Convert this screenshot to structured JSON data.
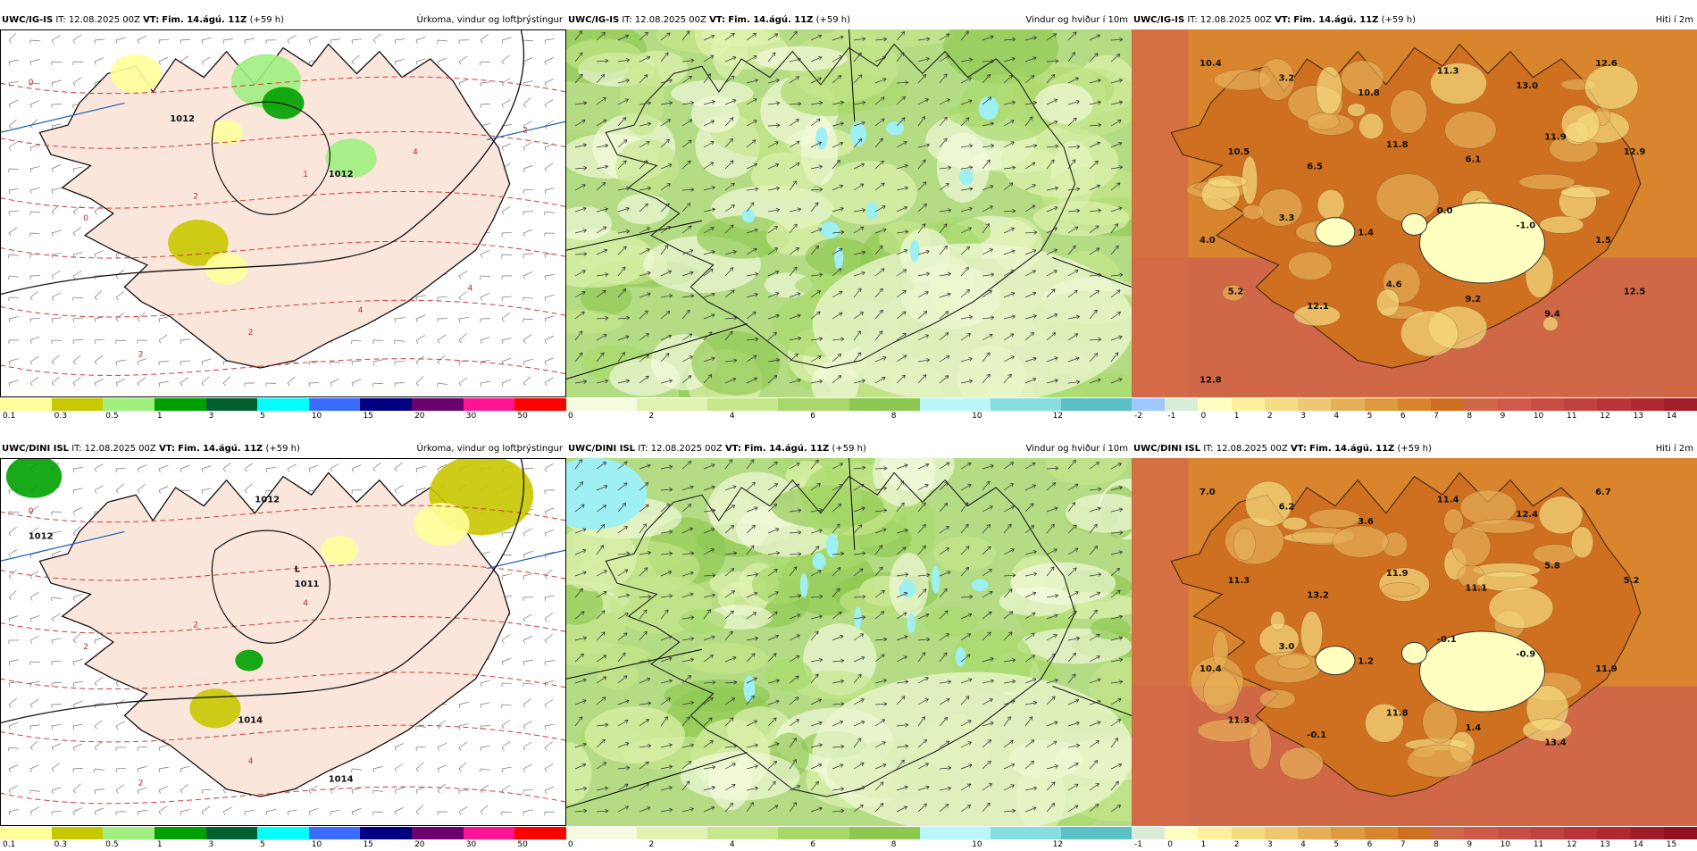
{
  "rows": [
    {
      "model": "UWC/IG-IS",
      "it_label": "IT:",
      "it_value": "12.08.2025 00Z",
      "vt_label": "VT:",
      "vt_value": "Fim. 14.ágú. 11Z",
      "lead": "(+59 h)",
      "panels": {
        "precip": {
          "title": "Úrkoma, vindur og loftþrýstingur",
          "ticks": [
            "0.1",
            "0.3",
            "0.5",
            "1",
            "3",
            "5",
            "10",
            "15",
            "20",
            "30",
            "50"
          ],
          "isobar_labels": [
            "1012",
            "1012"
          ],
          "contour_labels": [
            "0",
            "0",
            "2",
            "2",
            "2",
            "1",
            "4",
            "4",
            "4",
            "2"
          ]
        },
        "wind": {
          "title": "Vindur og hviður í 10m",
          "ticks": [
            "0",
            "2",
            "4",
            "6",
            "8",
            "10",
            "12"
          ]
        },
        "temp": {
          "title": "Hiti í 2m",
          "ticks": [
            "-2",
            "-1",
            "0",
            "1",
            "2",
            "3",
            "4",
            "5",
            "6",
            "7",
            "8",
            "9",
            "10",
            "11",
            "12",
            "13",
            "14"
          ],
          "labels": [
            "10.4",
            "3.2",
            "10.8",
            "11.3",
            "13.0",
            "12.6",
            "10.5",
            "6.5",
            "11.8",
            "6.1",
            "11.9",
            "12.9",
            "4.0",
            "3.3",
            "1.4",
            "0.0",
            "-1.0",
            "1.5",
            "5.2",
            "12.1",
            "4.6",
            "9.2",
            "9.4",
            "12.5",
            "12.8"
          ]
        }
      }
    },
    {
      "model": "UWC/DINI ISL",
      "it_label": "IT:",
      "it_value": "12.08.2025 00Z",
      "vt_label": "VT:",
      "vt_value": "Fim. 14.ágú. 11Z",
      "lead": "(+59 h)",
      "panels": {
        "precip": {
          "title": "Úrkoma, vindur og loftþrýstingur",
          "ticks": [
            "0.1",
            "0.3",
            "0.5",
            "1",
            "3",
            "5",
            "10",
            "15",
            "20",
            "30",
            "50"
          ],
          "isobar_labels": [
            "1012",
            "1012",
            "1011",
            "1014",
            "1014"
          ],
          "low_label": "L",
          "contour_labels": [
            "0",
            "2",
            "2",
            "2",
            "4",
            "4"
          ]
        },
        "wind": {
          "title": "Vindur og hviður í 10m",
          "ticks": [
            "0",
            "2",
            "4",
            "6",
            "8",
            "10",
            "12"
          ]
        },
        "temp": {
          "title": "Hiti í 2m",
          "ticks": [
            "-1",
            "0",
            "1",
            "2",
            "3",
            "4",
            "5",
            "6",
            "7",
            "8",
            "9",
            "10",
            "11",
            "12",
            "13",
            "14",
            "15"
          ],
          "labels": [
            "7.0",
            "6.2",
            "3.6",
            "11.4",
            "12.4",
            "6.7",
            "11.3",
            "13.2",
            "11.9",
            "11.1",
            "5.8",
            "5.2",
            "10.4",
            "3.0",
            "1.2",
            "-0.1",
            "-0.9",
            "11.9",
            "11.3",
            "-0.1",
            "11.8",
            "1.4",
            "13.4"
          ]
        }
      }
    }
  ],
  "colors": {
    "precip_bar": [
      "#ffff9a",
      "#c8c800",
      "#a0f080",
      "#00a000",
      "#006030",
      "#00ffff",
      "#3a6cff",
      "#000080",
      "#6c006c",
      "#ff1493",
      "#ff0000"
    ],
    "wind_bar": [
      "#f6fbe0",
      "#e0f2b0",
      "#c6e78c",
      "#a8d86a",
      "#8dc850",
      "#b8f6f8",
      "#86dee0",
      "#5bbfc6"
    ],
    "temp_bar_top": [
      "#9fc8ff",
      "#d8ecd8",
      "#ffffc0",
      "#fff0a0",
      "#f5dc80",
      "#eec870",
      "#e7b058",
      "#df9a40",
      "#d8852e",
      "#cf6f20",
      "#d06848",
      "#d05a4a",
      "#c84e44",
      "#c0423e",
      "#b83438",
      "#b02830",
      "#a01c28"
    ],
    "temp_bar_bottom": [
      "#d8ecd8",
      "#ffffc0",
      "#fff0a0",
      "#f5dc80",
      "#eec870",
      "#e7b058",
      "#df9a40",
      "#d8852e",
      "#cf6f20",
      "#d06848",
      "#d05a4a",
      "#c84e44",
      "#c0423e",
      "#b83438",
      "#b02830",
      "#a01c28",
      "#901020"
    ]
  }
}
